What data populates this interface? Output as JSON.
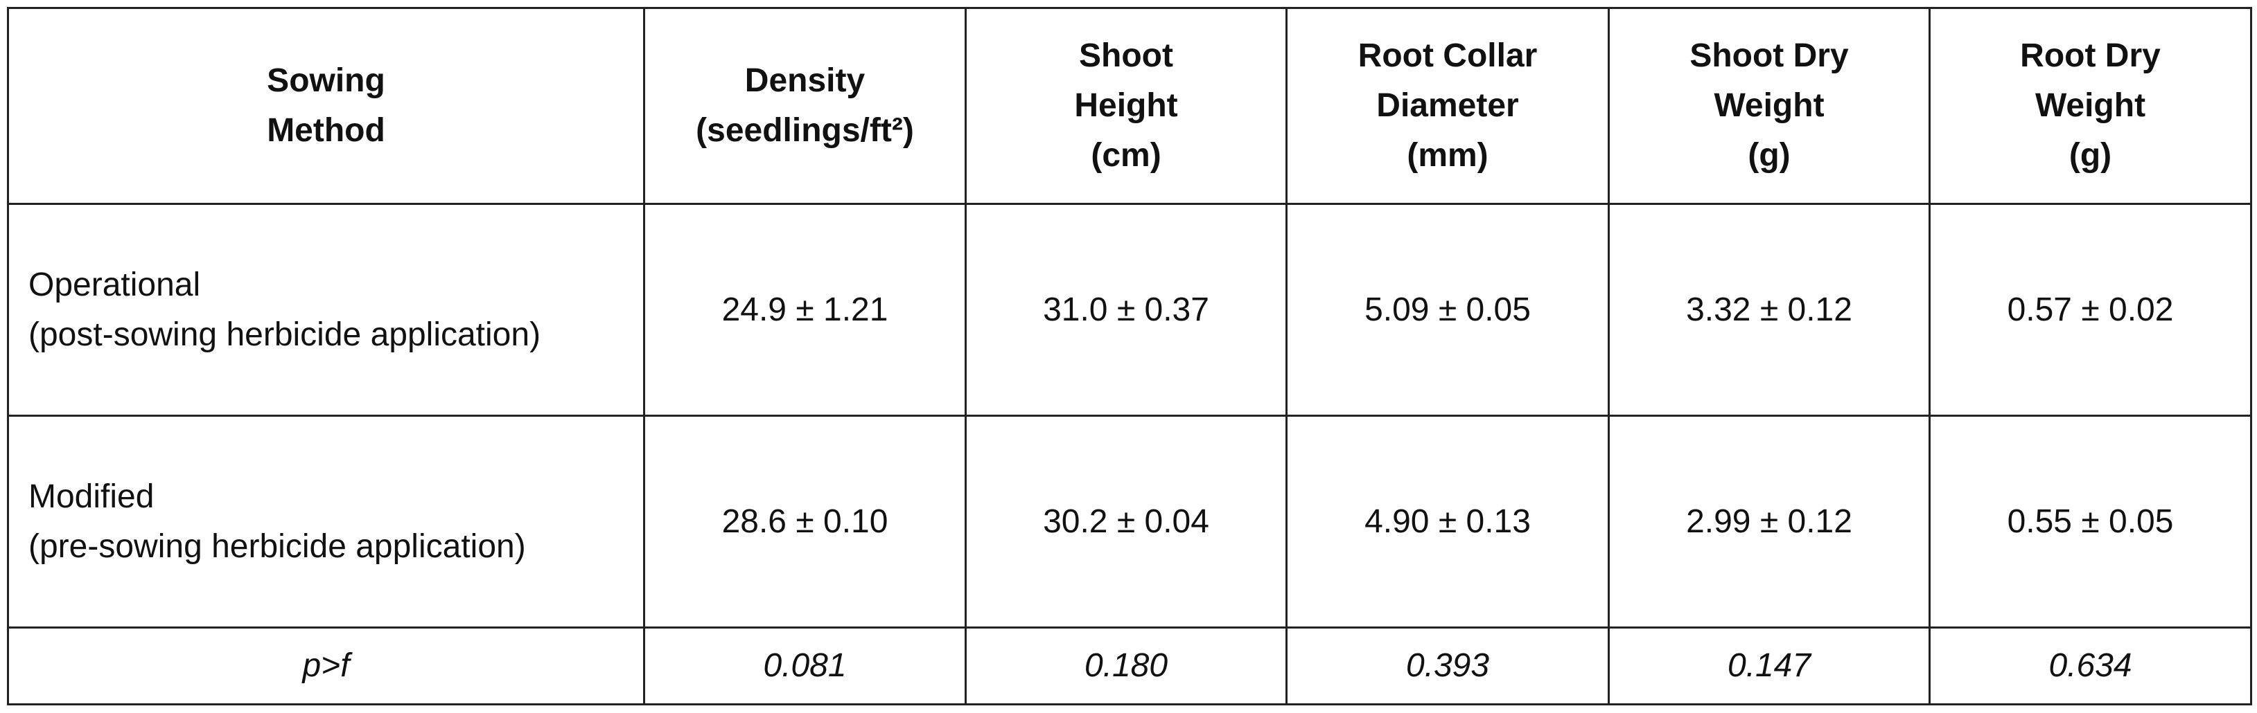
{
  "table": {
    "header": [
      [
        "Sowing",
        "Method"
      ],
      [
        "Density",
        "(seedlings/ft²)"
      ],
      [
        "Shoot",
        "Height",
        "(cm)"
      ],
      [
        "Root Collar",
        "Diameter",
        "(mm)"
      ],
      [
        "Shoot Dry",
        "Weight",
        "(g)"
      ],
      [
        "Root Dry",
        "Weight",
        "(g)"
      ]
    ],
    "rows": [
      [
        [
          "Operational",
          "(post-sowing herbicide application)"
        ],
        "24.9 ± 1.21",
        "31.0 ± 0.37",
        "5.09 ± 0.05",
        "3.32 ± 0.12",
        "0.57 ± 0.02"
      ],
      [
        [
          "Modified",
          "(pre-sowing herbicide application)"
        ],
        "28.6 ± 0.10",
        "30.2 ± 0.04",
        "4.90 ± 0.13",
        "2.99 ± 0.12",
        "0.55 ± 0.05"
      ]
    ],
    "footer": [
      "p>f",
      "0.081",
      "0.180",
      "0.393",
      "0.147",
      "0.634"
    ]
  }
}
